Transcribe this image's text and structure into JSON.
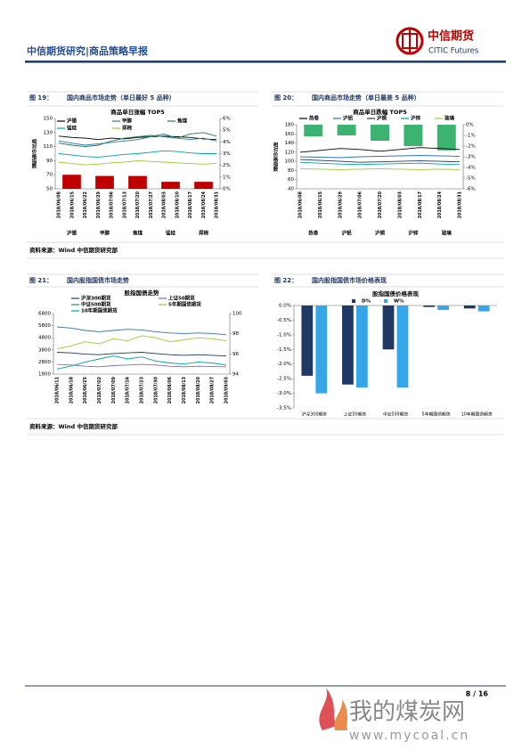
{
  "header": {
    "title": "中信期货研究|商品策略早报",
    "logo_cn": "中信期货",
    "logo_en": "CITIC Futures"
  },
  "chart_data": [
    {
      "figure_label": "图 19：",
      "caption": "国内商品市场走势（单日最好 5 品种）",
      "type": "combo",
      "title": "商品单日涨幅 TOP5",
      "y_label": "相对价格指数",
      "x": [
        "2018/06/08",
        "2018/06/15",
        "2018/06/22",
        "2018/06/29",
        "2018/07/06",
        "2018/07/13",
        "2018/07/20",
        "2018/07/27",
        "2018/08/03",
        "2018/08/10",
        "2018/08/17",
        "2018/08/24",
        "2018/08/31"
      ],
      "series": [
        {
          "name": "沪锡",
          "color": "#000000",
          "values": [
            125,
            123,
            122,
            120,
            122,
            121,
            123,
            124,
            125,
            124,
            123,
            121,
            120
          ]
        },
        {
          "name": "甲醇",
          "color": "#2e75b6",
          "values": [
            118,
            115,
            112,
            114,
            116,
            118,
            120,
            124,
            128,
            122,
            120,
            122,
            118
          ]
        },
        {
          "name": "焦煤",
          "color": "#1e7b4a",
          "values": [
            115,
            112,
            110,
            112,
            118,
            122,
            124,
            126,
            124,
            122,
            128,
            130,
            125
          ]
        },
        {
          "name": "锰硅",
          "color": "#00a0b0",
          "values": [
            100,
            98,
            96,
            95,
            97,
            99,
            100,
            102,
            104,
            103,
            101,
            100,
            100
          ]
        },
        {
          "name": "郑棉",
          "color": "#9acd32",
          "values": [
            88,
            86,
            84,
            85,
            87,
            88,
            90,
            89,
            88,
            87,
            86,
            85,
            86
          ]
        }
      ],
      "bars": {
        "categories": [
          "沪锡",
          "甲醇",
          "焦煤",
          "锰硅",
          "郑棉"
        ],
        "values": [
          1.2,
          1.1,
          1.1,
          0.6,
          0.6
        ],
        "color": "#c00000"
      },
      "ylim": [
        50,
        150
      ],
      "yticks": [
        50,
        70,
        90,
        110,
        130,
        150
      ],
      "y2lim": [
        0,
        6
      ],
      "y2ticks": [
        {
          "value": 0,
          "label": "0%"
        },
        {
          "value": 1,
          "label": "1%"
        },
        {
          "value": 2,
          "label": "2%"
        },
        {
          "value": 3,
          "label": "3%"
        },
        {
          "value": 4,
          "label": "4%"
        },
        {
          "value": 5,
          "label": "5%"
        },
        {
          "value": 6,
          "label": "6%"
        }
      ]
    },
    {
      "figure_label": "图 20：",
      "caption": "国内商品市场走势（单日最差 5 品种）",
      "type": "combo",
      "title": "商品单日跌幅 TOP5",
      "y_label": "相对价格指数",
      "x": [
        "2018/06/08",
        "2018/06/15",
        "2018/06/29",
        "2018/07/06",
        "2018/07/20",
        "2018/08/03",
        "2018/08/17",
        "2018/08/24",
        "2018/08/31"
      ],
      "series": [
        {
          "name": "热卷",
          "color": "#000000",
          "values": [
            120,
            124,
            128,
            126,
            122,
            126,
            130,
            128,
            126
          ]
        },
        {
          "name": "沪铝",
          "color": "#2e75b6",
          "values": [
            110,
            109,
            108,
            110,
            111,
            112,
            113,
            112,
            111
          ]
        },
        {
          "name": "沪铜",
          "color": "#1f3864",
          "values": [
            104,
            102,
            100,
            98,
            99,
            100,
            101,
            100,
            99
          ]
        },
        {
          "name": "沪锌",
          "color": "#00a0b0",
          "values": [
            98,
            96,
            94,
            93,
            94,
            95,
            96,
            94,
            93
          ]
        },
        {
          "name": "玻璃",
          "color": "#9acd32",
          "values": [
            84,
            83,
            82,
            83,
            84,
            83,
            82,
            83,
            82
          ]
        }
      ],
      "bars": {
        "categories": [
          "热卷",
          "沪铝",
          "沪铜",
          "沪锌",
          "玻璃"
        ],
        "values": [
          -1.1,
          -1.0,
          -1.5,
          -2.0,
          -2.4
        ],
        "color": "#3cb371"
      },
      "ylim": [
        40,
        180
      ],
      "yticks": [
        40,
        60,
        80,
        100,
        120,
        140,
        160,
        180
      ],
      "y2lim": [
        -6,
        0
      ],
      "y2ticks": [
        {
          "value": 0,
          "label": "0%"
        },
        {
          "value": -1,
          "label": "-1%"
        },
        {
          "value": -2,
          "label": "-2%"
        },
        {
          "value": -3,
          "label": "-3%"
        },
        {
          "value": -4,
          "label": "-4%"
        },
        {
          "value": -5,
          "label": "-5%"
        },
        {
          "value": -6,
          "label": "-6%"
        }
      ]
    },
    {
      "figure_label": "图 21：",
      "caption": "国内股指国债市场走势",
      "type": "line",
      "title": "股指国债走势",
      "x": [
        "2018/06/11",
        "2018/06/18",
        "2018/06/25",
        "2018/07/02",
        "2018/07/09",
        "2018/07/16",
        "2018/07/23",
        "2018/07/30",
        "2018/08/06",
        "2018/08/13",
        "2018/08/20",
        "2018/08/27",
        "2018/09/03"
      ],
      "series": [
        {
          "name": "沪深300期货",
          "color": "#1f3864",
          "values": [
            3600,
            3550,
            3450,
            3400,
            3500,
            3550,
            3600,
            3500,
            3400,
            3350,
            3400,
            3350,
            3300
          ]
        },
        {
          "name": "上证50期货",
          "color": "#7f6fa8",
          "values": [
            2600,
            2550,
            2450,
            2400,
            2500,
            2550,
            2600,
            2550,
            2450,
            2400,
            2450,
            2420,
            2400
          ]
        },
        {
          "name": "中证500期货",
          "color": "#2e75b6",
          "values": [
            5700,
            5600,
            5400,
            5300,
            5400,
            5500,
            5450,
            5300,
            5200,
            5150,
            5200,
            5150,
            5050
          ]
        },
        {
          "name": "5年期国债期货",
          "color": "#9acd32",
          "axis": "y2",
          "values": [
            96.5,
            96.8,
            97.2,
            97.0,
            97.5,
            97.3,
            97.8,
            97.6,
            97.2,
            97.4,
            97.6,
            97.5,
            97.3
          ]
        },
        {
          "name": "10年期国债期货",
          "color": "#00a0b0",
          "axis": "y2",
          "values": [
            94.5,
            94.8,
            95.2,
            95.5,
            95.8,
            95.5,
            95.7,
            95.3,
            95.1,
            95.0,
            95.2,
            95.1,
            94.9
          ]
        }
      ],
      "ylim": [
        1800,
        6800
      ],
      "yticks": [
        1800,
        2800,
        3800,
        4800,
        5800,
        6800
      ],
      "y2lim": [
        94,
        100
      ],
      "y2ticks": [
        94,
        96,
        98,
        100
      ]
    },
    {
      "figure_label": "图 22：",
      "caption": "国内股指国债市场价格表现",
      "type": "bar",
      "title": "股指国债价格表现",
      "categories": [
        "沪深300期货",
        "上证50期货",
        "中证500期货",
        "5年期国债期货",
        "10年期国债期货"
      ],
      "series": [
        {
          "name": "D%",
          "color": "#1f3864",
          "values": [
            -2.4,
            -2.7,
            -1.5,
            -0.05,
            -0.1
          ]
        },
        {
          "name": "W%",
          "color": "#35a7e8",
          "values": [
            -3.0,
            -2.8,
            -2.8,
            -0.15,
            -0.2
          ]
        }
      ],
      "ylim": [
        -3.5,
        0
      ],
      "yticks": [
        {
          "value": 0,
          "label": "0.0%"
        },
        {
          "value": -0.5,
          "label": "-0.5%"
        },
        {
          "value": -1,
          "label": "-1.0%"
        },
        {
          "value": -1.5,
          "label": "-1.5%"
        },
        {
          "value": -2,
          "label": "-2.0%"
        },
        {
          "value": -2.5,
          "label": "-2.5%"
        },
        {
          "value": -3,
          "label": "-3.0%"
        },
        {
          "value": -3.5,
          "label": "-3.5%"
        }
      ]
    }
  ],
  "sources": [
    "资料来源：Wind  中信期货研究部",
    "资料来源：Wind  中信期货研究部"
  ],
  "footer": {
    "page": "8 / 16"
  },
  "watermark": {
    "name": "我的煤炭网",
    "url": "www.mycoal.cn"
  }
}
